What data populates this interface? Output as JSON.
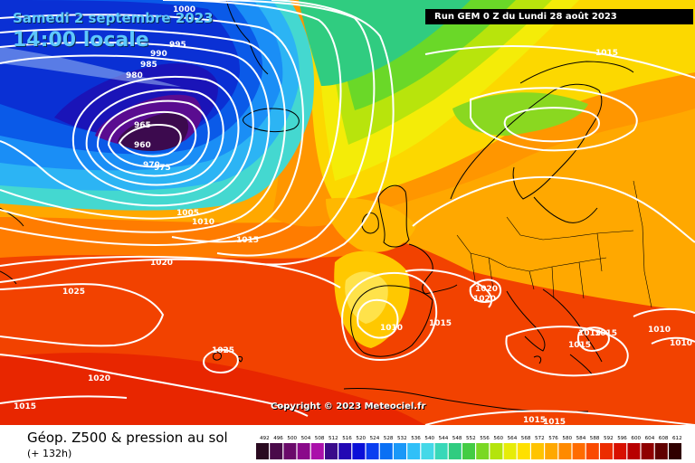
{
  "header": {
    "date_text": "Samedi 2 septembre 2023",
    "time_text": "14:00 locale",
    "run_text": "Run GEM 0 Z du Lundi 28 août 2023"
  },
  "copyright": "Copyright © 2023 Meteociel.fr",
  "footer": {
    "title": "Géop. Z500 & pression au sol",
    "subtitle": "(+ 132h)"
  },
  "isobar_labels": [
    "1000",
    "995",
    "990",
    "985",
    "980",
    "965",
    "960",
    "970",
    "975",
    "1005",
    "1010",
    "1015",
    "1020",
    "1025",
    "1025",
    "1020",
    "1015",
    "1015",
    "1010",
    "1015",
    "1020",
    "1020",
    "1015",
    "1015",
    "1015",
    "1010",
    "1010",
    "1015",
    "1015"
  ],
  "scale": {
    "values": [
      "492",
      "496",
      "500",
      "504",
      "508",
      "512",
      "516",
      "520",
      "524",
      "528",
      "532",
      "536",
      "540",
      "544",
      "548",
      "552",
      "556",
      "560",
      "564",
      "568",
      "572",
      "576",
      "580",
      "584",
      "588",
      "592",
      "596",
      "600",
      "604",
      "608",
      "612"
    ],
    "colors": [
      "#2a0a20",
      "#4a0a4a",
      "#6a0a6a",
      "#8a0a8a",
      "#aa10aa",
      "#3a0a8a",
      "#2208b4",
      "#0a10d8",
      "#0a3ef0",
      "#0a70f4",
      "#1a98f8",
      "#30c0f8",
      "#44d8e8",
      "#38d8b8",
      "#30cc80",
      "#44cc44",
      "#7ad824",
      "#b4e40c",
      "#e6ec08",
      "#ffe000",
      "#ffc400",
      "#ffa800",
      "#ff8a00",
      "#ff6c00",
      "#fa4a00",
      "#ec2c00",
      "#d81000",
      "#b80000",
      "#900000",
      "#600000",
      "#300000"
    ]
  },
  "colors": {
    "low_center": "#3c0a4e",
    "deep_blue": "#0a3cd8",
    "sky_blue": "#20a8f8",
    "cyan": "#44dcd8",
    "green": "#5ad02c",
    "yellow": "#f6ee08",
    "orange": "#ffa800",
    "red": "#f43400",
    "isobar": "#ffffff",
    "coast": "#000000"
  }
}
